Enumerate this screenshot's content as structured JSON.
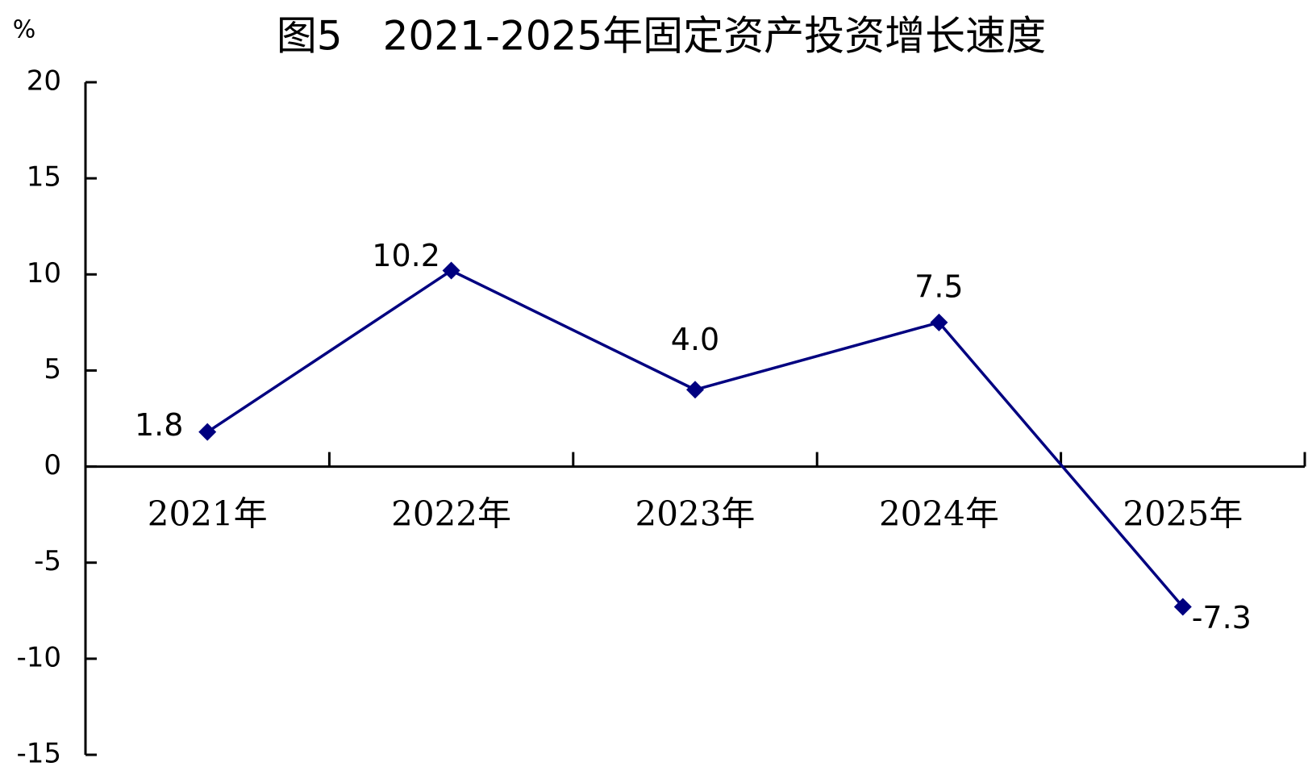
{
  "chart_data": {
    "type": "line",
    "title": "图5　2021-2025年固定资产投资增长速度",
    "y_label": "%",
    "categories": [
      "2021年",
      "2022年",
      "2023年",
      "2024年",
      "2025年"
    ],
    "series": [
      {
        "name": "固定资产投资增长速度",
        "color": "#000080",
        "values": [
          1.8,
          10.2,
          4.0,
          7.5,
          -7.3
        ],
        "value_labels": [
          "1.8",
          "10.2",
          "4.0",
          "7.5",
          "-7.3"
        ]
      }
    ],
    "ylim": [
      -15,
      20
    ],
    "yticks": [
      -15,
      -10,
      -5,
      0,
      5,
      10,
      15,
      20
    ],
    "grid": false,
    "legend": false
  }
}
